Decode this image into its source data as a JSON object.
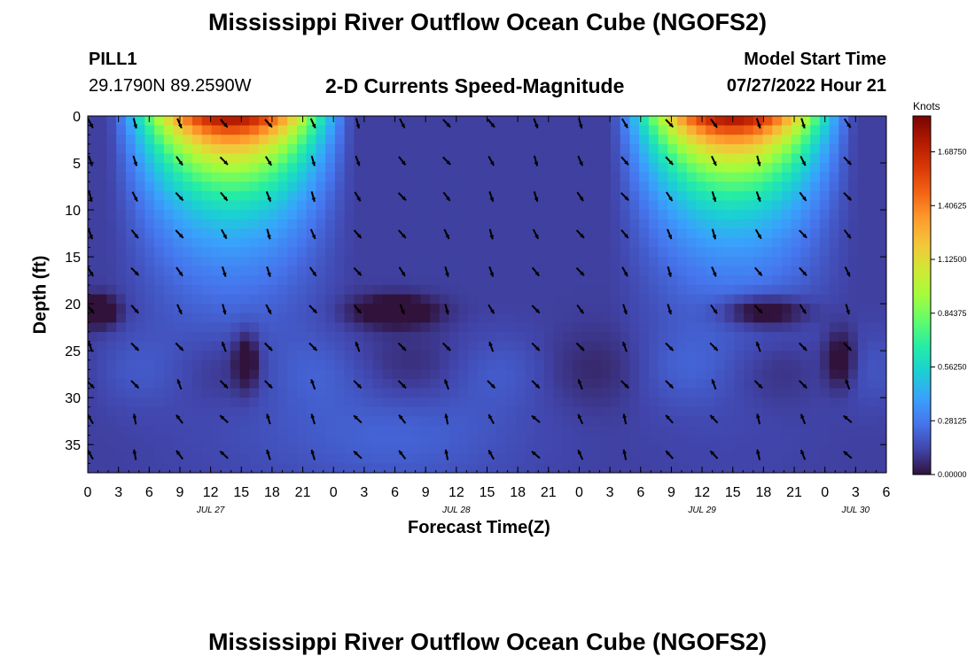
{
  "header": {
    "title": "Mississippi River Outflow Ocean Cube (NGOFS2)",
    "station_id": "PILL1",
    "coordinates": "29.1790N  89.2590W",
    "subtitle": "2-D Currents Speed-Magnitude",
    "model_start_label": "Model Start Time",
    "model_start_value": "07/27/2022 Hour 21"
  },
  "footer": {
    "title": "Mississippi River Outflow Ocean Cube (NGOFS2)"
  },
  "chart_data": {
    "type": "heatmap",
    "ylabel": "Depth (ft)",
    "xlabel": "Forecast Time(Z)",
    "y_ticks": [
      0,
      5,
      10,
      15,
      20,
      25,
      30,
      35
    ],
    "ylim": [
      0,
      38
    ],
    "x_tick_labels": [
      "0",
      "3",
      "6",
      "9",
      "12",
      "15",
      "18",
      "21",
      "0",
      "3",
      "6",
      "9",
      "12",
      "15",
      "18",
      "21",
      "0",
      "3",
      "6",
      "9",
      "12",
      "15",
      "18",
      "21",
      "0",
      "3",
      "6"
    ],
    "date_labels": [
      {
        "label": "JUL 27",
        "hour": 12
      },
      {
        "label": "JUL 28",
        "hour": 36
      },
      {
        "label": "JUL 29",
        "hour": 60
      },
      {
        "label": "JUL 30",
        "hour": 75
      }
    ],
    "xlim_hours": [
      0,
      78
    ],
    "colorbar": {
      "title": "Knots",
      "ticks": [
        "1.68750",
        "1.40625",
        "1.12500",
        "0.84375",
        "0.56250",
        "0.28125",
        "0.00000"
      ],
      "range": [
        0,
        1.875
      ],
      "colors": [
        "#30123b",
        "#4145ab",
        "#4675ed",
        "#39a2fc",
        "#1bcfd4",
        "#24eca6",
        "#61fc6c",
        "#a4fc3b",
        "#d1e834",
        "#f3c63a",
        "#fe9b2d",
        "#f36315",
        "#d93806",
        "#b11901",
        "#7a0402"
      ]
    },
    "grid": false
  }
}
